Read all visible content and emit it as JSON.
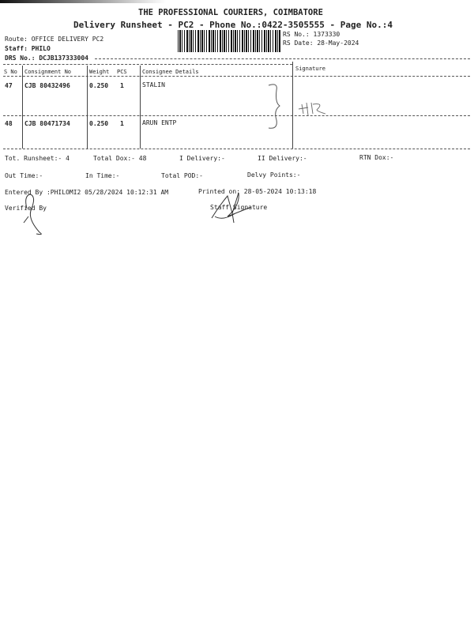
{
  "header": {
    "company": "THE PROFESSIONAL COURIERS, COIMBATORE",
    "subtitle": "Delivery Runsheet - PC2 - Phone No.:0422-3505555 - Page No.:4",
    "route": "Route: OFFICE DELIVERY PC2",
    "staff": "Staff: PHILO",
    "drs": "DRS No.: DCJB137333004",
    "rs_no": "RS No.: 1373330",
    "rs_date": "RS Date: 28-May-2024"
  },
  "table": {
    "columns": [
      "S No",
      "Consignment No",
      "Weight",
      "PCS",
      "Consignee Details",
      "Signature"
    ],
    "rows": [
      {
        "sno": "47",
        "consignment": "CJB 80432496",
        "weight": "0.250",
        "pcs": "1",
        "consignee": "STALIN"
      },
      {
        "sno": "48",
        "consignment": "CJB 80471734",
        "weight": "0.250",
        "pcs": "1",
        "consignee": "ARUN ENTP"
      }
    ]
  },
  "summary": {
    "tot_runsheet": "Tot. Runsheet:- 4",
    "total_dox": "Total Dox:-   48",
    "i_delivery": "I Delivery:-",
    "ii_delivery": "II Delivery:-",
    "rtn_dox": "RTN Dox:-",
    "out_time": "Out Time:-",
    "in_time": "In Time:-",
    "total_pod": "Total POD:-",
    "delvy_points": "Delvy Points:-",
    "entered_by": "Entered By :PHILOMI2 05/28/2024 10:12:31 AM",
    "printed_on": "Printed on: 28-05-2024 10:13:18",
    "verified_by": "Verified By",
    "staff_signature": "Staff Signature"
  }
}
